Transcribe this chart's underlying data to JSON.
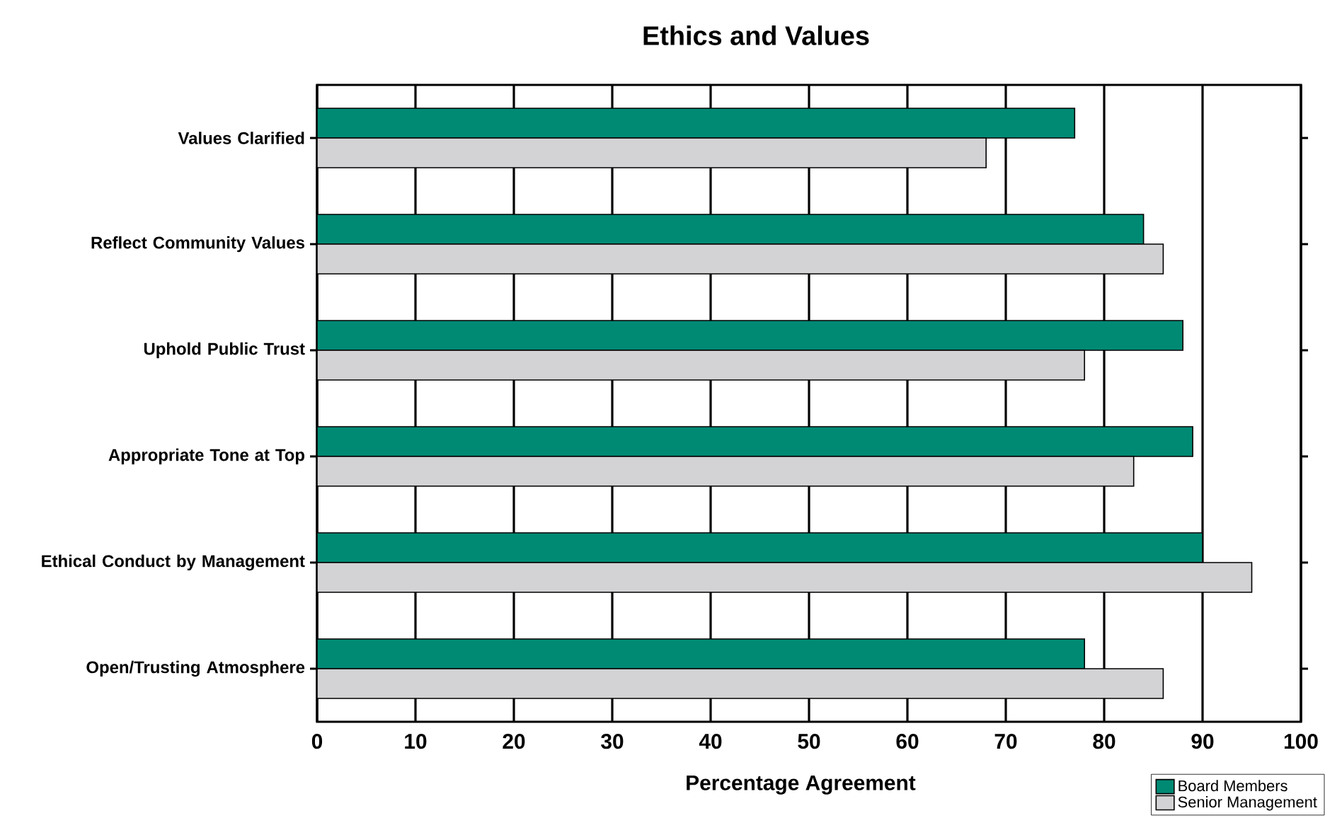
{
  "chart_data": {
    "type": "bar",
    "orientation": "horizontal",
    "title": "Ethics and Values",
    "xlabel": "Percentage Agreement",
    "categories": [
      "Values Clarified",
      "Reflect Community Values",
      "Uphold Public Trust",
      "Appropriate Tone at Top",
      "Ethical Conduct by Management",
      "Open/Trusting Atmosphere"
    ],
    "series": [
      {
        "name": "Board Members",
        "color": "#008a74",
        "values": [
          77,
          84,
          88,
          89,
          90,
          78
        ]
      },
      {
        "name": "Senior Management",
        "color": "#d3d3d5",
        "values": [
          68,
          86,
          78,
          83,
          95,
          86
        ]
      }
    ],
    "xlim": [
      0,
      100
    ],
    "xticks": [
      0,
      10,
      20,
      30,
      40,
      50,
      60,
      70,
      80,
      90,
      100
    ],
    "grid": "x",
    "legend": "bottom right"
  }
}
